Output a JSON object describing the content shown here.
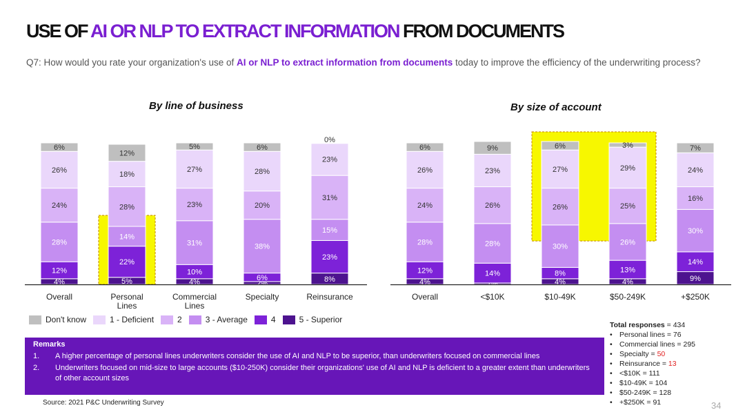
{
  "title": {
    "prefix": "USE OF ",
    "accent": "AI OR NLP TO EXTRACT INFORMATION",
    "suffix": " FROM DOCUMENTS"
  },
  "question": {
    "prefix": "Q7: How would you rate your organization's use of ",
    "bold": "AI or NLP to extract information from documents",
    "suffix": " today to improve the efficiency of the underwriting process?"
  },
  "colors": {
    "dont_know": "#bfbfbf",
    "deficient": "#ead7fb",
    "two": "#d9b3f7",
    "average": "#c48ef1",
    "four": "#7d22d8",
    "superior": "#4d138f",
    "highlight": "#f7f700",
    "accent": "#7a1fd1"
  },
  "legend": [
    "Don't know",
    "1 - Deficient",
    "2",
    "3 - Average",
    "4",
    "5 - Superior"
  ],
  "chart_data": [
    {
      "type": "bar",
      "stacked": true,
      "title": "By line of business",
      "categories": [
        "Overall",
        "Personal Lines",
        "Commercial Lines",
        "Specialty",
        "Reinsurance"
      ],
      "series": [
        {
          "name": "5 - Superior",
          "values": [
            4,
            5,
            4,
            2,
            8
          ]
        },
        {
          "name": "4",
          "values": [
            12,
            22,
            10,
            6,
            23
          ]
        },
        {
          "name": "3 - Average",
          "values": [
            28,
            14,
            31,
            38,
            15
          ]
        },
        {
          "name": "2",
          "values": [
            24,
            28,
            23,
            20,
            31
          ]
        },
        {
          "name": "1 - Deficient",
          "values": [
            26,
            18,
            27,
            28,
            23
          ]
        },
        {
          "name": "Don't know",
          "values": [
            6,
            12,
            5,
            6,
            0
          ]
        }
      ],
      "highlighted_categories": [
        "Personal Lines"
      ],
      "ylim": [
        0,
        100
      ]
    },
    {
      "type": "bar",
      "stacked": true,
      "title": "By size of account",
      "categories": [
        "Overall",
        "<$10K",
        "$10-49K",
        "$50-249K",
        "+$250K"
      ],
      "series": [
        {
          "name": "5 - Superior",
          "values": [
            4,
            1,
            4,
            4,
            9
          ]
        },
        {
          "name": "4",
          "values": [
            12,
            14,
            8,
            13,
            14
          ]
        },
        {
          "name": "3 - Average",
          "values": [
            28,
            28,
            30,
            26,
            30
          ]
        },
        {
          "name": "2",
          "values": [
            24,
            26,
            26,
            25,
            16
          ]
        },
        {
          "name": "1 - Deficient",
          "values": [
            26,
            23,
            27,
            29,
            24
          ]
        },
        {
          "name": "Don't know",
          "values": [
            6,
            9,
            6,
            3,
            7
          ]
        }
      ],
      "highlighted_categories": [
        "$10-49K",
        "$50-249K"
      ],
      "ylim": [
        0,
        100
      ]
    }
  ],
  "remarks": {
    "heading": "Remarks",
    "items": [
      {
        "num": "1.",
        "text": "A higher percentage of personal lines underwriters consider the use of AI and NLP to be superior, than underwriters focused on commercial lines"
      },
      {
        "num": "2.",
        "text": "Underwriters focused on mid-size to large accounts ($10-250K) consider their organizations' use of AI and NLP is deficient to a greater extent than underwriters of other account sizes"
      }
    ]
  },
  "source": "Source: 2021 P&C Underwriting Survey",
  "totals": {
    "label": "Total responses",
    "value": " = 434",
    "items": [
      {
        "label": "Personal lines = ",
        "value": "76"
      },
      {
        "label": "Commercial lines = ",
        "value": "295"
      },
      {
        "label": "Specialty = ",
        "value": "50"
      },
      {
        "label": "Reinsurance = ",
        "value": "13"
      },
      {
        "label": "<$10K = ",
        "value": "111"
      },
      {
        "label": "$10-49K = ",
        "value": "104"
      },
      {
        "label": "$50-249K = ",
        "value": "128"
      },
      {
        "label": "+$250K = ",
        "value": "91"
      }
    ]
  },
  "page_number": "34"
}
